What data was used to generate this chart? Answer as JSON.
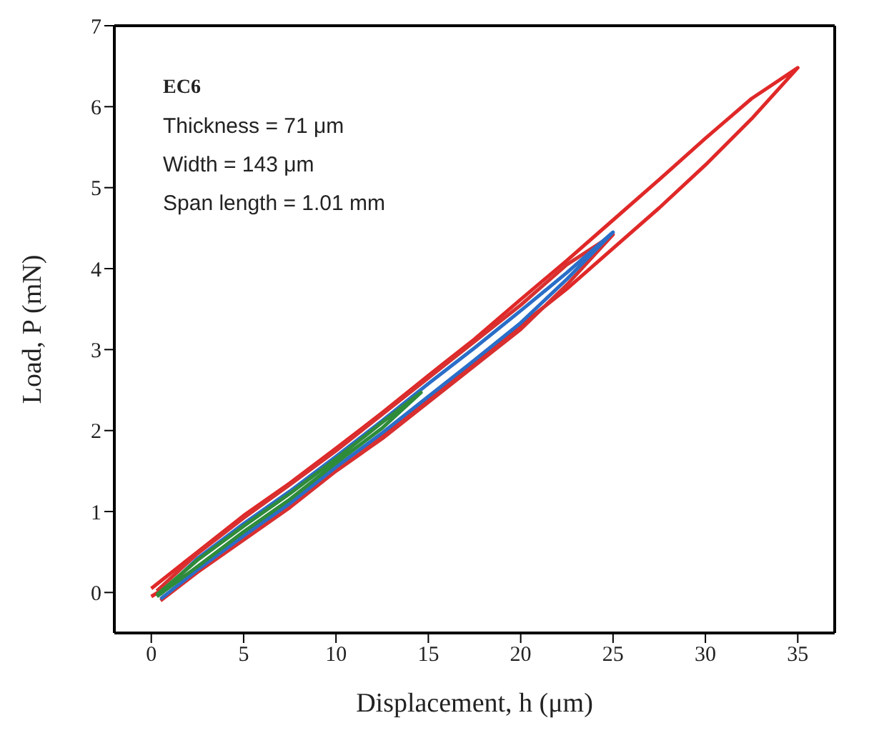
{
  "chart_data": {
    "type": "line",
    "xlabel": "Displacement, h (μm)",
    "ylabel": "Load, P (mN)",
    "xlim": [
      -2,
      37
    ],
    "ylim": [
      -0.5,
      7
    ],
    "xticks": [
      0,
      5,
      10,
      15,
      20,
      25,
      30,
      35
    ],
    "yticks": [
      0,
      1,
      2,
      3,
      4,
      5,
      6,
      7
    ],
    "grid": false,
    "legend": false,
    "marker": "none",
    "line_style": "solid",
    "annotations": [
      "EC6",
      "Thickness = 71 μm",
      "Width = 143 μm",
      "Span length = 1.01 mm"
    ],
    "series": [
      {
        "color": "#e02828",
        "x": [
          0,
          2.5,
          5,
          7.5,
          10,
          12.5,
          15,
          17.5,
          20,
          22.5,
          25,
          27.5,
          30,
          32.5,
          35,
          32.5,
          30,
          27.5,
          25,
          22.5,
          20,
          17.5,
          15,
          12.5,
          10,
          7.5,
          5,
          2.5,
          0
        ],
        "values": [
          -0.05,
          0.3,
          0.7,
          1.1,
          1.55,
          1.95,
          2.4,
          2.85,
          3.3,
          3.75,
          4.25,
          4.75,
          5.28,
          5.85,
          6.48,
          6.1,
          5.61,
          5.1,
          4.6,
          4.1,
          3.62,
          3.13,
          2.68,
          2.22,
          1.78,
          1.35,
          0.95,
          0.5,
          0.05
        ]
      },
      {
        "color": "#d83030",
        "x": [
          0.5,
          2.5,
          5,
          7.5,
          10,
          12.5,
          15,
          17.5,
          20,
          22.5,
          25,
          22.5,
          20,
          17.5,
          15,
          12.5,
          10,
          7.5,
          5,
          2.5,
          0.3
        ],
        "values": [
          -0.1,
          0.25,
          0.65,
          1.05,
          1.5,
          1.9,
          2.35,
          2.8,
          3.25,
          3.8,
          4.42,
          4.05,
          3.55,
          3.1,
          2.65,
          2.2,
          1.75,
          1.33,
          0.92,
          0.48,
          0.02
        ]
      },
      {
        "color": "#2a6ec8",
        "x": [
          0.5,
          2.5,
          5,
          7.5,
          10,
          12.5,
          15,
          17.5,
          20,
          22.5,
          25,
          22.5,
          20,
          17.5,
          15,
          12.5,
          10,
          7.5,
          5,
          2.5,
          0.5
        ],
        "values": [
          -0.08,
          0.28,
          0.7,
          1.1,
          1.55,
          1.97,
          2.42,
          2.87,
          3.33,
          3.87,
          4.45,
          3.95,
          3.48,
          3.02,
          2.58,
          2.12,
          1.68,
          1.25,
          0.85,
          0.42,
          -0.02
        ]
      },
      {
        "color": "#2e8b3a",
        "x": [
          0.3,
          2.5,
          5,
          7.5,
          10,
          12.5,
          14.6,
          12.5,
          10,
          7.5,
          5,
          2.5,
          0.3
        ],
        "values": [
          -0.05,
          0.32,
          0.75,
          1.15,
          1.6,
          2.03,
          2.47,
          2.1,
          1.65,
          1.22,
          0.82,
          0.4,
          -0.03
        ]
      }
    ]
  }
}
